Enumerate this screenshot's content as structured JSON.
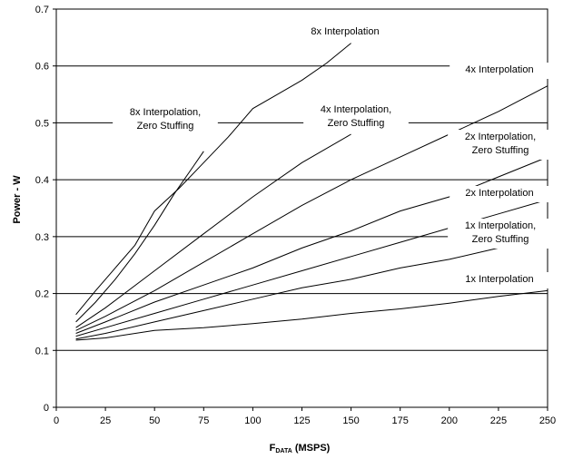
{
  "chart_data": {
    "type": "line",
    "xlabel": "F",
    "xlabel_sub": "DATA",
    "xlabel_unit": " (MSPS)",
    "ylabel": "Power - W",
    "xlim": [
      0,
      250
    ],
    "ylim": [
      0,
      0.7
    ],
    "x_ticks": [
      0,
      25,
      50,
      75,
      100,
      125,
      150,
      175,
      200,
      225,
      250
    ],
    "y_ticks": [
      0,
      0.1,
      0.2,
      0.3,
      0.4,
      0.5,
      0.6,
      0.7
    ],
    "y_tick_labels": [
      "0",
      "0.1",
      "0.2",
      "0.3",
      "0.4",
      "0.5",
      "0.6",
      "0.7"
    ],
    "grid": "horizontal",
    "legend": "inline labels",
    "series": [
      {
        "name_lines": [
          "8x Interpolation"
        ],
        "x": [
          10,
          20,
          30,
          40,
          50,
          62.5,
          75,
          87.5,
          100,
          112.5,
          125,
          137.5,
          150
        ],
        "y": [
          0.163,
          0.205,
          0.245,
          0.285,
          0.345,
          0.385,
          0.43,
          0.475,
          0.525,
          0.55,
          0.575,
          0.605,
          0.64
        ]
      },
      {
        "name_lines": [
          "8x Interpolation,",
          "Zero Stuffing"
        ],
        "x": [
          10,
          20,
          30,
          40,
          50,
          60,
          70,
          75
        ],
        "y": [
          0.15,
          0.185,
          0.225,
          0.27,
          0.32,
          0.375,
          0.425,
          0.45
        ]
      },
      {
        "name_lines": [
          "4x Interpolation,",
          "Zero Stuffing"
        ],
        "x": [
          10,
          25,
          50,
          75,
          100,
          125,
          150
        ],
        "y": [
          0.14,
          0.175,
          0.24,
          0.305,
          0.37,
          0.43,
          0.48
        ]
      },
      {
        "name_lines": [
          "4x Interpolation"
        ],
        "x": [
          10,
          25,
          50,
          75,
          100,
          125,
          150,
          175,
          200,
          225,
          250
        ],
        "y": [
          0.135,
          0.16,
          0.205,
          0.255,
          0.305,
          0.355,
          0.4,
          0.44,
          0.48,
          0.52,
          0.565
        ]
      },
      {
        "name_lines": [
          "2x Interpolation,",
          "Zero Stuffing"
        ],
        "x": [
          10,
          25,
          50,
          75,
          100,
          125,
          150,
          175,
          200,
          225,
          250
        ],
        "y": [
          0.13,
          0.15,
          0.185,
          0.215,
          0.245,
          0.28,
          0.31,
          0.345,
          0.37,
          0.405,
          0.44
        ]
      },
      {
        "name_lines": [
          "2x Interpolation"
        ],
        "x": [
          10,
          25,
          50,
          75,
          100,
          125,
          150,
          175,
          200,
          225,
          250
        ],
        "y": [
          0.125,
          0.14,
          0.165,
          0.19,
          0.215,
          0.24,
          0.265,
          0.29,
          0.315,
          0.34,
          0.365
        ]
      },
      {
        "name_lines": [
          "1x Interpolation,",
          "Zero Stuffing"
        ],
        "x": [
          10,
          25,
          50,
          75,
          100,
          125,
          150,
          175,
          200,
          225,
          250
        ],
        "y": [
          0.12,
          0.13,
          0.15,
          0.17,
          0.19,
          0.21,
          0.225,
          0.245,
          0.26,
          0.28,
          0.3
        ]
      },
      {
        "name_lines": [
          "1x Interpolation"
        ],
        "x": [
          10,
          25,
          50,
          75,
          100,
          125,
          150,
          175,
          200,
          225,
          250
        ],
        "y": [
          0.118,
          0.122,
          0.135,
          0.14,
          0.147,
          0.155,
          0.165,
          0.173,
          0.183,
          0.195,
          0.205
        ]
      }
    ]
  }
}
